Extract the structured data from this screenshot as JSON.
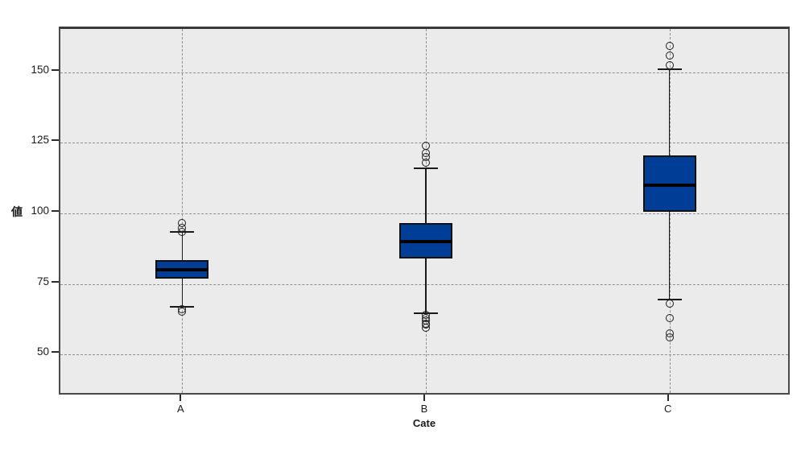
{
  "chart_data": {
    "type": "boxplot",
    "title": "",
    "xlabel": "Cate",
    "ylabel": "値",
    "categories": [
      "A",
      "B",
      "C"
    ],
    "ylim": [
      34.9,
      165.4
    ],
    "yticks": [
      50,
      75,
      100,
      125,
      150
    ],
    "grid": {
      "horizontal": "dashed at each y tick",
      "vertical": "dashed at each category center",
      "legend": "none"
    },
    "series": [
      {
        "category": "A",
        "q1": 77,
        "median": 80,
        "q3": 83.5,
        "whisker_low": 67,
        "whisker_high": 93.5,
        "outliers_high": [
          96.5,
          95,
          93.5
        ],
        "outliers_low": [
          66,
          65.3
        ]
      },
      {
        "category": "B",
        "q1": 84,
        "median": 90,
        "q3": 96.5,
        "whisker_low": 64.5,
        "whisker_high": 116,
        "outliers_high": [
          124,
          121.5,
          120,
          118
        ],
        "outliers_low": [
          64,
          63,
          62,
          61,
          60.5,
          59.5
        ]
      },
      {
        "category": "C",
        "q1": 100.5,
        "median": 110,
        "q3": 120.5,
        "whisker_low": 69.5,
        "whisker_high": 151,
        "outliers_high": [
          159.5,
          156,
          152.5
        ],
        "outliers_low": [
          68,
          63,
          57.5,
          56
        ]
      }
    ],
    "colors": {
      "box_fill": "#003d96",
      "box_border": "#101010",
      "median": "#000000",
      "whisker": "#1a1a1a",
      "outlier_stroke": "#1f1f1f",
      "grid": "#8f8f8f",
      "plot_bg": "#ebebeb",
      "frame": "#4a4a4a",
      "text": "#1a1a1a",
      "page_bg": "#ffffff"
    }
  }
}
